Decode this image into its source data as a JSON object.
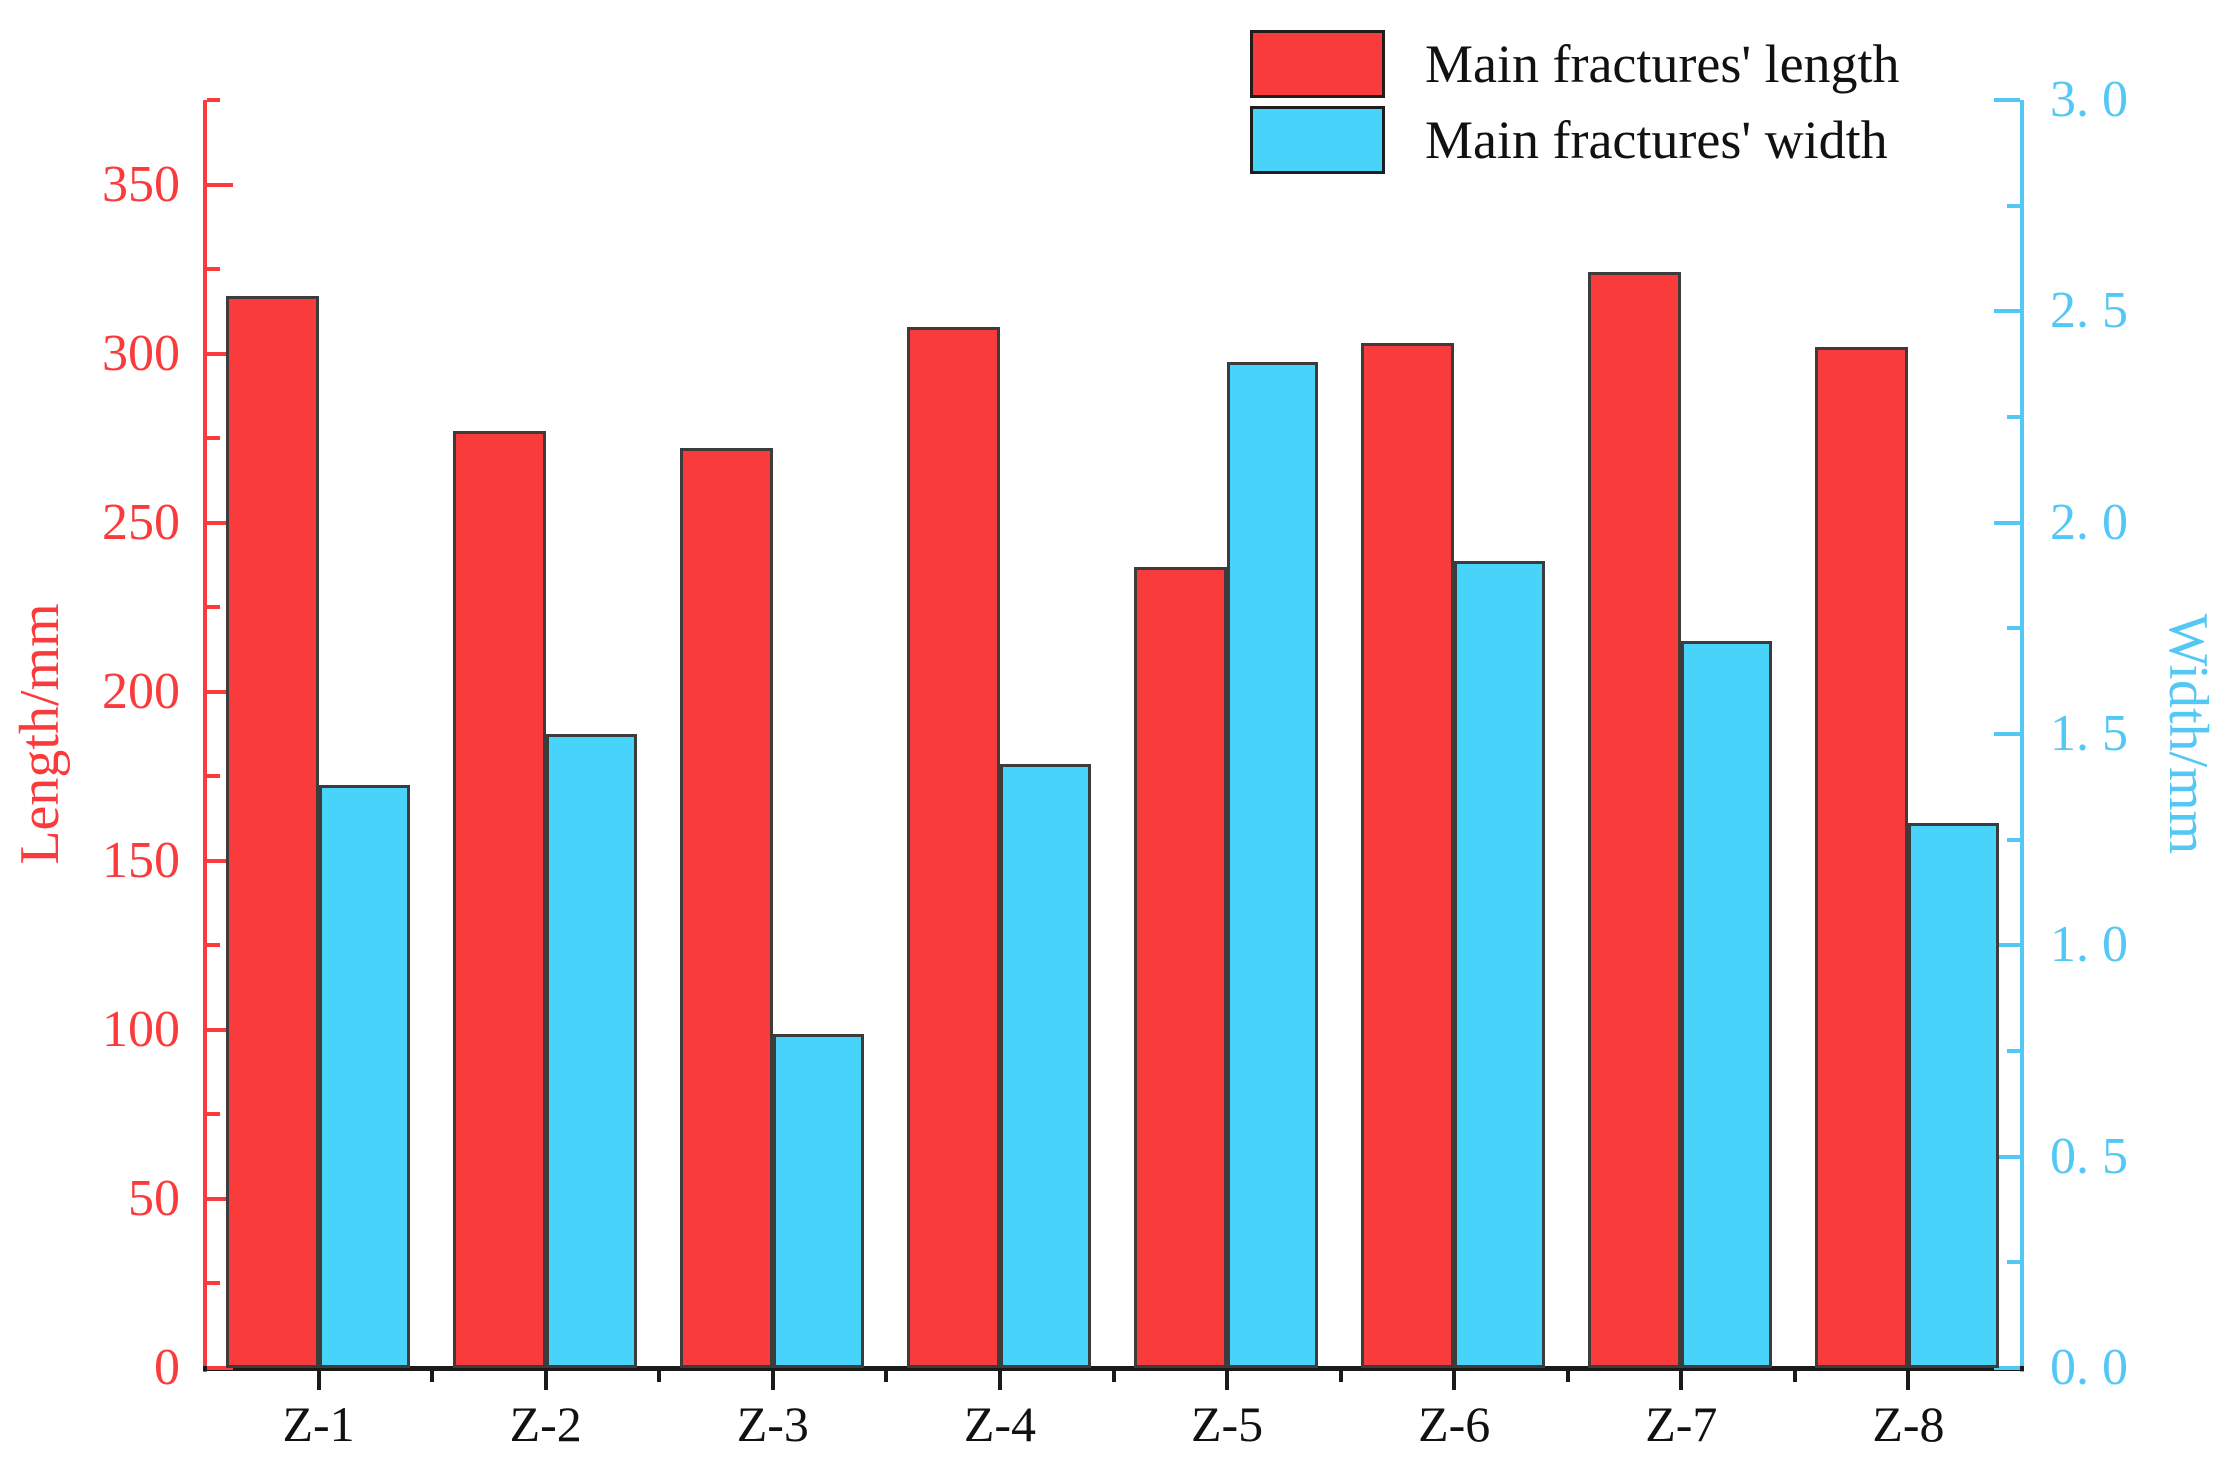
{
  "chart_data": {
    "type": "bar",
    "title": "",
    "categories": [
      "Z-1",
      "Z-2",
      "Z-3",
      "Z-4",
      "Z-5",
      "Z-6",
      "Z-7",
      "Z-8"
    ],
    "series": [
      {
        "name": "Main fractures' length",
        "axis": "left",
        "color": "#f93b3b",
        "values": [
          317,
          277,
          272,
          308,
          237,
          303,
          324,
          302
        ]
      },
      {
        "name": "Main fractures' width",
        "axis": "right",
        "color": "#48d3fb",
        "values": [
          1.38,
          1.5,
          0.79,
          1.43,
          2.38,
          1.91,
          1.72,
          1.29
        ]
      }
    ],
    "left_axis": {
      "label": "Length/mm",
      "range": [
        0,
        375
      ],
      "major_step": 50,
      "minor_step": 25,
      "tick_labels": [
        "0",
        "50",
        "100",
        "150",
        "200",
        "250",
        "300",
        "350"
      ],
      "color": "#fb3b3b"
    },
    "right_axis": {
      "label": "Width/mm",
      "range": [
        0,
        3
      ],
      "major_step": 0.5,
      "minor_step": 0.25,
      "tick_labels": [
        "0. 0",
        "0. 5",
        "1. 0",
        "1. 5",
        "2. 0",
        "2. 5",
        "3. 0"
      ],
      "color": "#54c8f5"
    },
    "x_axis": {
      "color": "#1a1a1a"
    },
    "legend": {
      "position": "top-right",
      "items": [
        {
          "label": "Main fractures' length",
          "color": "#f93b3b"
        },
        {
          "label": "Main fractures' width",
          "color": "#48d3fb"
        }
      ]
    },
    "grid": false
  }
}
